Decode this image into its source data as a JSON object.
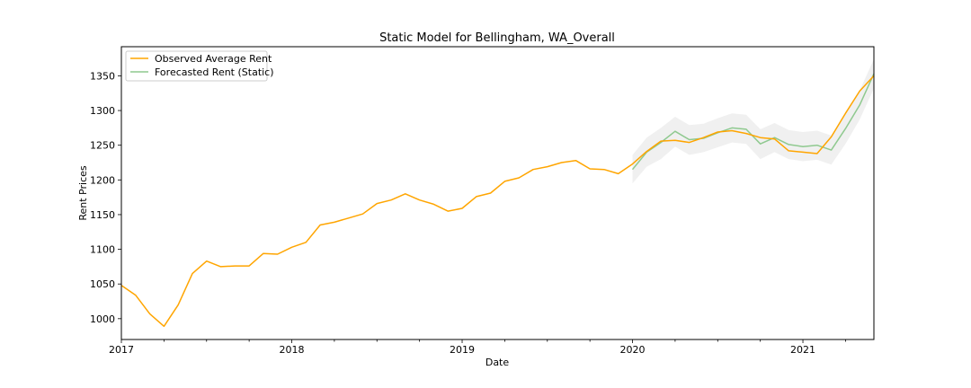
{
  "chart_data": {
    "type": "line",
    "title": "Static Model for Bellingham, WA_Overall",
    "xlabel": "Date",
    "ylabel": "Rent Prices",
    "xlim": [
      "2017-01",
      "2021-06"
    ],
    "ylim": [
      970,
      1392
    ],
    "x_ticks": [
      "2017",
      "2018",
      "2019",
      "2020",
      "2021"
    ],
    "y_ticks": [
      1000,
      1050,
      1100,
      1150,
      1200,
      1250,
      1300,
      1350
    ],
    "grid": false,
    "legend_position": "top-left",
    "colors": {
      "observed": "#ffa500",
      "forecast": "#8fc98f",
      "interval": "#e6e6e6"
    },
    "series": [
      {
        "name": "Observed Average Rent",
        "x": [
          "2017-01",
          "2017-02",
          "2017-03",
          "2017-04",
          "2017-05",
          "2017-06",
          "2017-07",
          "2017-08",
          "2017-09",
          "2017-10",
          "2017-11",
          "2017-12",
          "2018-01",
          "2018-02",
          "2018-03",
          "2018-04",
          "2018-05",
          "2018-06",
          "2018-07",
          "2018-08",
          "2018-09",
          "2018-10",
          "2018-11",
          "2018-12",
          "2019-01",
          "2019-02",
          "2019-03",
          "2019-04",
          "2019-05",
          "2019-06",
          "2019-07",
          "2019-08",
          "2019-09",
          "2019-10",
          "2019-11",
          "2019-12",
          "2020-01",
          "2020-02",
          "2020-03",
          "2020-04",
          "2020-05",
          "2020-06",
          "2020-07",
          "2020-08",
          "2020-09",
          "2020-10",
          "2020-11",
          "2020-12",
          "2021-01",
          "2021-02",
          "2021-03",
          "2021-04",
          "2021-05",
          "2021-06"
        ],
        "values": [
          1048,
          1034,
          1007,
          989,
          1020,
          1065,
          1083,
          1075,
          1076,
          1076,
          1094,
          1093,
          1103,
          1110,
          1135,
          1139,
          1145,
          1151,
          1166,
          1171,
          1180,
          1171,
          1165,
          1155,
          1159,
          1176,
          1181,
          1198,
          1203,
          1215,
          1219,
          1225,
          1228,
          1216,
          1215,
          1209,
          1223,
          1241,
          1256,
          1257,
          1254,
          1261,
          1269,
          1271,
          1267,
          1261,
          1259,
          1242,
          1240,
          1238,
          1262,
          1296,
          1328,
          1350
        ]
      },
      {
        "name": "Forecasted Rent (Static)",
        "x": [
          "2020-01",
          "2020-02",
          "2020-03",
          "2020-04",
          "2020-05",
          "2020-06",
          "2020-07",
          "2020-08",
          "2020-09",
          "2020-10",
          "2020-11",
          "2020-12",
          "2021-01",
          "2021-02",
          "2021-03",
          "2021-04",
          "2021-05",
          "2021-06"
        ],
        "values": [
          1215,
          1240,
          1254,
          1270,
          1258,
          1260,
          1268,
          1275,
          1273,
          1252,
          1261,
          1251,
          1248,
          1250,
          1243,
          1274,
          1308,
          1353
        ],
        "lower": [
          1195,
          1219,
          1230,
          1248,
          1236,
          1240,
          1247,
          1254,
          1252,
          1230,
          1240,
          1230,
          1227,
          1229,
          1222,
          1252,
          1287,
          1332
        ],
        "upper": [
          1236,
          1261,
          1275,
          1291,
          1279,
          1281,
          1289,
          1296,
          1294,
          1273,
          1282,
          1272,
          1269,
          1271,
          1264,
          1295,
          1329,
          1374
        ]
      }
    ]
  }
}
